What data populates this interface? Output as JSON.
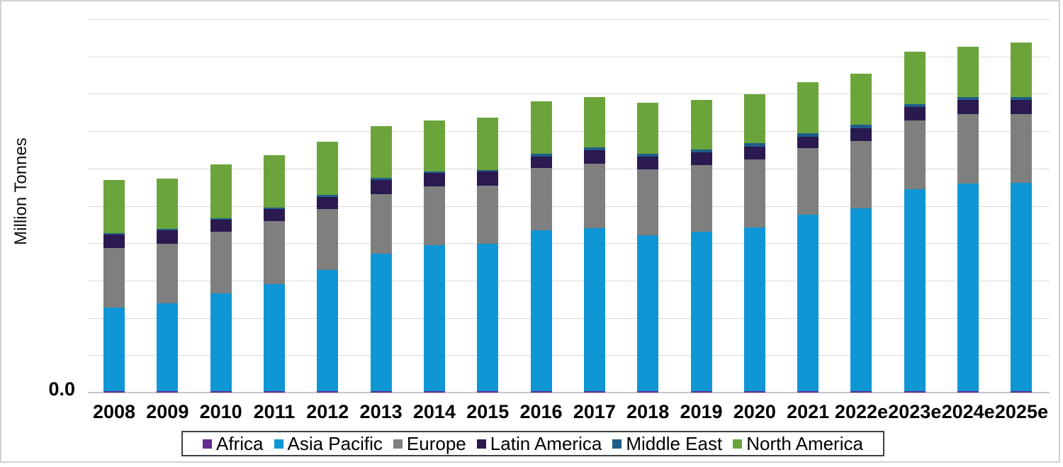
{
  "chart_data": {
    "type": "bar",
    "stacked": true,
    "title": "",
    "ylabel": "Million Tonnes",
    "y_zero_label": "0.0",
    "ylim": [
      0,
      500
    ],
    "gridline_interval": 50,
    "grid": true,
    "legend_position": "bottom",
    "categories": [
      "2008",
      "2009",
      "2010",
      "2011",
      "2012",
      "2013",
      "2014",
      "2015",
      "2016",
      "2017",
      "2018",
      "2019",
      "2020",
      "2021",
      "2022e",
      "2023e",
      "2024e",
      "2025e"
    ],
    "series": [
      {
        "name": "Africa",
        "color": "#662d91",
        "values": [
          1.9,
          1.9,
          1.9,
          1.9,
          1.9,
          1.9,
          1.9,
          1.9,
          1.9,
          1.9,
          1.9,
          1.9,
          1.9,
          1.9,
          1.9,
          1.9,
          1.9,
          1.9
        ]
      },
      {
        "name": "Asia Pacific",
        "color": "#0e96d5",
        "values": [
          111.5,
          118.1,
          131.4,
          143.7,
          161.8,
          184.5,
          195.0,
          196.9,
          215.8,
          218.2,
          208.7,
          213.5,
          219.6,
          236.7,
          245.2,
          270.4,
          278.4,
          278.9
        ]
      },
      {
        "name": "Europe",
        "color": "#7f7f7f",
        "values": [
          80.6,
          79.7,
          82.1,
          84.0,
          82.5,
          79.7,
          79.2,
          78.3,
          83.0,
          86.8,
          88.7,
          89.2,
          91.1,
          89.2,
          90.1,
          92.5,
          92.5,
          92.5
        ]
      },
      {
        "name": "Latin America",
        "color": "#2a1a4f",
        "values": [
          17.6,
          18.0,
          16.1,
          15.7,
          16.1,
          19.0,
          17.6,
          18.5,
          15.7,
          17.6,
          16.6,
          16.6,
          17.1,
          14.7,
          17.1,
          18.0,
          19.0,
          19.0
        ]
      },
      {
        "name": "Middle East",
        "color": "#1f5c8a",
        "values": [
          1.9,
          1.9,
          1.9,
          1.9,
          2.8,
          2.8,
          2.8,
          2.8,
          3.8,
          3.8,
          3.8,
          4.3,
          4.3,
          4.7,
          4.7,
          3.8,
          3.8,
          3.8
        ]
      },
      {
        "name": "North America",
        "color": "#6ba43b",
        "values": [
          70.7,
          67.4,
          72.1,
          70.2,
          70.7,
          68.8,
          67.4,
          69.7,
          69.7,
          67.4,
          68.8,
          65.9,
          65.5,
          68.8,
          68.3,
          69.7,
          67.8,
          72.6
        ]
      }
    ]
  }
}
